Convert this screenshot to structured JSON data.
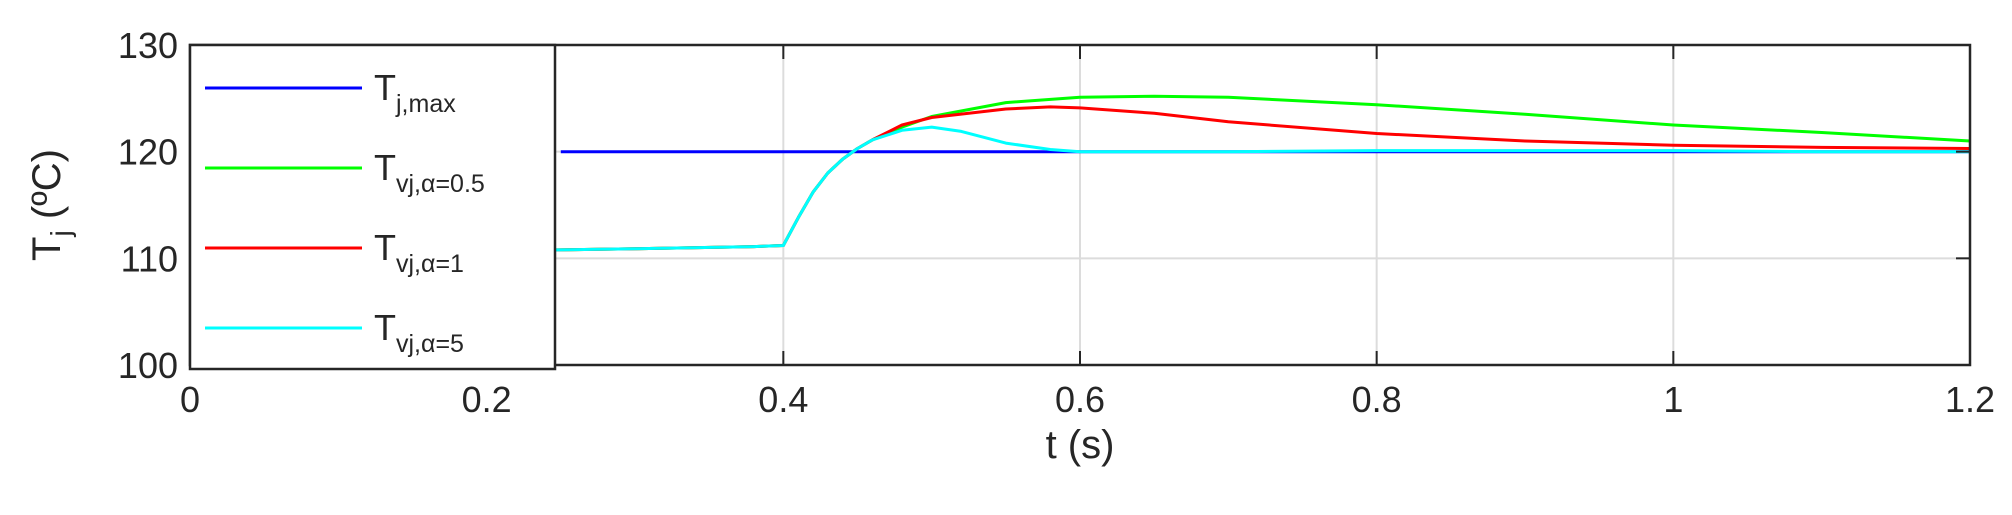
{
  "chart_data": {
    "type": "line",
    "xlabel": {
      "main": "t (s)"
    },
    "ylabel": {
      "base": "T",
      "sub": "j",
      "rest": " (ºC)"
    },
    "xlim": [
      0,
      1.2
    ],
    "ylim": [
      100,
      130
    ],
    "xticks": [
      0,
      0.2,
      0.4,
      0.6,
      0.8,
      1,
      1.2
    ],
    "xtick_labels": [
      "0",
      "0.2",
      "0.4",
      "0.6",
      "0.8",
      "1",
      "1.2"
    ],
    "yticks": [
      100,
      110,
      120,
      130
    ],
    "ytick_labels": [
      "100",
      "110",
      "120",
      "130"
    ],
    "grid": true,
    "legend_position": "top-left",
    "series": [
      {
        "key": "tj-max",
        "name_base": "T",
        "name_sub": "j,max",
        "color": "#0000ff",
        "points": [
          [
            0.25,
            120
          ],
          [
            1.2,
            120
          ]
        ]
      },
      {
        "key": "tvj-alpha-0-5",
        "name_base": "T",
        "name_sub": "vj,α=0.5",
        "color": "#00ff00",
        "points": [
          [
            0,
            110.3
          ],
          [
            0.1,
            110.5
          ],
          [
            0.2,
            110.7
          ],
          [
            0.3,
            110.9
          ],
          [
            0.38,
            111.1
          ],
          [
            0.4,
            111.2
          ],
          [
            0.41,
            113.8
          ],
          [
            0.42,
            116.2
          ],
          [
            0.43,
            118.0
          ],
          [
            0.44,
            119.3
          ],
          [
            0.45,
            120.3
          ],
          [
            0.46,
            121.1
          ],
          [
            0.48,
            122.3
          ],
          [
            0.5,
            123.3
          ],
          [
            0.55,
            124.6
          ],
          [
            0.6,
            125.1
          ],
          [
            0.65,
            125.2
          ],
          [
            0.7,
            125.1
          ],
          [
            0.8,
            124.4
          ],
          [
            0.9,
            123.5
          ],
          [
            1.0,
            122.5
          ],
          [
            1.1,
            121.8
          ],
          [
            1.2,
            121.0
          ]
        ]
      },
      {
        "key": "tvj-alpha-1",
        "name_base": "T",
        "name_sub": "vj,α=1",
        "color": "#ff0000",
        "points": [
          [
            0,
            110.3
          ],
          [
            0.1,
            110.5
          ],
          [
            0.2,
            110.7
          ],
          [
            0.3,
            110.9
          ],
          [
            0.38,
            111.1
          ],
          [
            0.4,
            111.2
          ],
          [
            0.41,
            113.8
          ],
          [
            0.42,
            116.2
          ],
          [
            0.43,
            118.0
          ],
          [
            0.44,
            119.3
          ],
          [
            0.45,
            120.3
          ],
          [
            0.46,
            121.1
          ],
          [
            0.48,
            122.5
          ],
          [
            0.5,
            123.2
          ],
          [
            0.55,
            124.0
          ],
          [
            0.58,
            124.2
          ],
          [
            0.6,
            124.1
          ],
          [
            0.65,
            123.6
          ],
          [
            0.7,
            122.8
          ],
          [
            0.8,
            121.7
          ],
          [
            0.9,
            121.0
          ],
          [
            1.0,
            120.6
          ],
          [
            1.1,
            120.4
          ],
          [
            1.2,
            120.3
          ]
        ]
      },
      {
        "key": "tvj-alpha-5",
        "name_base": "T",
        "name_sub": "vj,α=5",
        "color": "#00ffff",
        "points": [
          [
            0,
            110.3
          ],
          [
            0.1,
            110.5
          ],
          [
            0.2,
            110.7
          ],
          [
            0.3,
            110.9
          ],
          [
            0.38,
            111.1
          ],
          [
            0.4,
            111.2
          ],
          [
            0.41,
            113.8
          ],
          [
            0.42,
            116.2
          ],
          [
            0.43,
            118.0
          ],
          [
            0.44,
            119.3
          ],
          [
            0.45,
            120.3
          ],
          [
            0.46,
            121.1
          ],
          [
            0.48,
            122.0
          ],
          [
            0.5,
            122.3
          ],
          [
            0.52,
            121.9
          ],
          [
            0.55,
            120.8
          ],
          [
            0.58,
            120.2
          ],
          [
            0.6,
            120.0
          ],
          [
            0.7,
            120.0
          ],
          [
            0.8,
            120.1
          ],
          [
            0.9,
            120.1
          ],
          [
            1.0,
            120.1
          ],
          [
            1.1,
            120.0
          ],
          [
            1.2,
            120.0
          ]
        ]
      }
    ]
  }
}
